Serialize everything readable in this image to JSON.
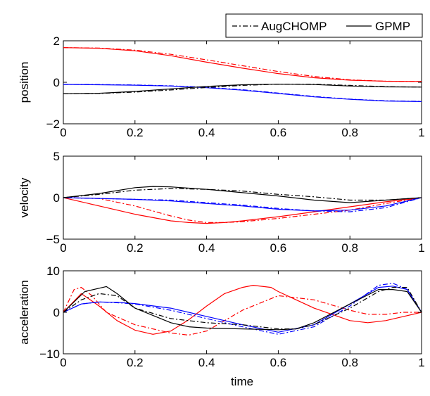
{
  "chart_data": [
    {
      "type": "line",
      "ylabel": "position",
      "xlabel": "",
      "xlim": [
        0,
        1
      ],
      "ylim": [
        -2,
        2
      ],
      "xticks": [
        0,
        0.2,
        0.4,
        0.6,
        0.8,
        1
      ],
      "xtick_labels": [
        "0",
        "0.2",
        "0.4",
        "0.6",
        "0.8",
        "1"
      ],
      "yticks": [
        -2,
        0,
        2
      ],
      "ytick_labels": [
        "−2",
        "0",
        "2"
      ],
      "legend": {
        "placement": "top-right, above plot",
        "entries": [
          "AugCHOMP",
          "GPMP"
        ]
      },
      "series": [
        {
          "method": "AugCHOMP",
          "color": "#ff0000",
          "style": "dashdot",
          "x": [
            0,
            0.1,
            0.2,
            0.3,
            0.4,
            0.5,
            0.6,
            0.7,
            0.8,
            0.9,
            1.0
          ],
          "y": [
            1.67,
            1.65,
            1.55,
            1.35,
            1.08,
            0.8,
            0.52,
            0.28,
            0.12,
            0.05,
            0.04
          ]
        },
        {
          "method": "GPMP",
          "color": "#ff0000",
          "style": "solid",
          "x": [
            0,
            0.1,
            0.2,
            0.3,
            0.4,
            0.5,
            0.6,
            0.7,
            0.8,
            0.9,
            1.0
          ],
          "y": [
            1.67,
            1.64,
            1.52,
            1.28,
            0.97,
            0.68,
            0.42,
            0.22,
            0.1,
            0.05,
            0.04
          ]
        },
        {
          "method": "AugCHOMP",
          "color": "#0000ff",
          "style": "dashdot",
          "x": [
            0,
            0.1,
            0.2,
            0.3,
            0.4,
            0.5,
            0.6,
            0.7,
            0.8,
            0.9,
            1.0
          ],
          "y": [
            -0.1,
            -0.11,
            -0.13,
            -0.17,
            -0.24,
            -0.36,
            -0.52,
            -0.68,
            -0.81,
            -0.89,
            -0.92
          ]
        },
        {
          "method": "GPMP",
          "color": "#0000ff",
          "style": "solid",
          "x": [
            0,
            0.1,
            0.2,
            0.3,
            0.4,
            0.5,
            0.6,
            0.7,
            0.8,
            0.9,
            1.0
          ],
          "y": [
            -0.1,
            -0.12,
            -0.14,
            -0.18,
            -0.26,
            -0.38,
            -0.54,
            -0.7,
            -0.82,
            -0.9,
            -0.93
          ]
        },
        {
          "method": "AugCHOMP",
          "color": "#000000",
          "style": "dashdot",
          "x": [
            0,
            0.1,
            0.2,
            0.3,
            0.4,
            0.5,
            0.6,
            0.7,
            0.8,
            0.9,
            1.0
          ],
          "y": [
            -0.55,
            -0.54,
            -0.47,
            -0.37,
            -0.25,
            -0.15,
            -0.09,
            -0.09,
            -0.15,
            -0.21,
            -0.23
          ]
        },
        {
          "method": "GPMP",
          "color": "#000000",
          "style": "solid",
          "x": [
            0,
            0.1,
            0.2,
            0.3,
            0.4,
            0.5,
            0.6,
            0.7,
            0.8,
            0.9,
            1.0
          ],
          "y": [
            -0.55,
            -0.53,
            -0.44,
            -0.32,
            -0.2,
            -0.12,
            -0.09,
            -0.11,
            -0.18,
            -0.22,
            -0.23
          ]
        }
      ]
    },
    {
      "type": "line",
      "ylabel": "velocity",
      "xlabel": "",
      "xlim": [
        0,
        1
      ],
      "ylim": [
        -5,
        5
      ],
      "xticks": [
        0,
        0.2,
        0.4,
        0.6,
        0.8,
        1
      ],
      "xtick_labels": [
        "0",
        "0.2",
        "0.4",
        "0.6",
        "0.8",
        "1"
      ],
      "yticks": [
        -5,
        0,
        5
      ],
      "ytick_labels": [
        "−5",
        "0",
        "5"
      ],
      "series": [
        {
          "method": "AugCHOMP",
          "color": "#ff0000",
          "style": "dashdot",
          "x": [
            0,
            0.1,
            0.2,
            0.3,
            0.35,
            0.4,
            0.45,
            0.5,
            0.6,
            0.7,
            0.8,
            0.9,
            1.0
          ],
          "y": [
            0,
            -0.1,
            -1.0,
            -2.2,
            -2.7,
            -3.0,
            -3.0,
            -2.9,
            -2.5,
            -2.0,
            -1.5,
            -0.7,
            0
          ]
        },
        {
          "method": "GPMP",
          "color": "#ff0000",
          "style": "solid",
          "x": [
            0,
            0.1,
            0.2,
            0.3,
            0.35,
            0.4,
            0.45,
            0.5,
            0.6,
            0.7,
            0.8,
            0.9,
            1.0
          ],
          "y": [
            0,
            -1.0,
            -2.0,
            -2.8,
            -3.0,
            -3.1,
            -3.0,
            -2.8,
            -2.3,
            -1.7,
            -1.1,
            -0.5,
            0
          ]
        },
        {
          "method": "AugCHOMP",
          "color": "#0000ff",
          "style": "dashdot",
          "x": [
            0,
            0.1,
            0.2,
            0.3,
            0.4,
            0.5,
            0.6,
            0.7,
            0.8,
            0.9,
            1.0
          ],
          "y": [
            0,
            -0.1,
            -0.2,
            -0.3,
            -0.6,
            -0.9,
            -1.3,
            -1.6,
            -1.7,
            -1.2,
            0
          ]
        },
        {
          "method": "GPMP",
          "color": "#0000ff",
          "style": "solid",
          "x": [
            0,
            0.1,
            0.2,
            0.3,
            0.4,
            0.5,
            0.6,
            0.7,
            0.8,
            0.9,
            1.0
          ],
          "y": [
            0,
            -0.1,
            -0.2,
            -0.4,
            -0.7,
            -1.0,
            -1.4,
            -1.6,
            -1.5,
            -1.0,
            0
          ]
        },
        {
          "method": "AugCHOMP",
          "color": "#000000",
          "style": "dashdot",
          "x": [
            0,
            0.1,
            0.2,
            0.3,
            0.4,
            0.5,
            0.6,
            0.7,
            0.8,
            0.9,
            1.0
          ],
          "y": [
            0,
            0.4,
            0.9,
            1.1,
            1.0,
            0.8,
            0.4,
            0.1,
            -0.3,
            -0.3,
            0
          ]
        },
        {
          "method": "GPMP",
          "color": "#000000",
          "style": "solid",
          "x": [
            0,
            0.1,
            0.2,
            0.25,
            0.3,
            0.4,
            0.5,
            0.6,
            0.7,
            0.8,
            0.9,
            1.0
          ],
          "y": [
            0,
            0.5,
            1.2,
            1.35,
            1.3,
            1.0,
            0.6,
            0.2,
            -0.3,
            -0.6,
            -0.3,
            0
          ]
        }
      ]
    },
    {
      "type": "line",
      "ylabel": "acceleration",
      "xlabel": "time",
      "xlim": [
        0,
        1
      ],
      "ylim": [
        -10,
        10
      ],
      "xticks": [
        0,
        0.2,
        0.4,
        0.6,
        0.8,
        1
      ],
      "xtick_labels": [
        "0",
        "0.2",
        "0.4",
        "0.6",
        "0.8",
        "1"
      ],
      "yticks": [
        -10,
        0,
        10
      ],
      "ytick_labels": [
        "−10",
        "0",
        "10"
      ],
      "series": [
        {
          "method": "AugCHOMP",
          "color": "#ff0000",
          "style": "dashdot",
          "x": [
            0,
            0.03,
            0.05,
            0.08,
            0.12,
            0.2,
            0.3,
            0.35,
            0.4,
            0.5,
            0.6,
            0.7,
            0.8,
            0.85,
            0.9,
            0.95,
            1.0
          ],
          "y": [
            0,
            5.5,
            6.0,
            4.0,
            0.0,
            -3.0,
            -5.0,
            -5.5,
            -4.5,
            0.5,
            4.0,
            3.0,
            0.5,
            -0.5,
            -0.5,
            0,
            0
          ]
        },
        {
          "method": "GPMP",
          "color": "#ff0000",
          "style": "solid",
          "x": [
            0,
            0.05,
            0.1,
            0.15,
            0.2,
            0.25,
            0.3,
            0.35,
            0.4,
            0.45,
            0.5,
            0.53,
            0.58,
            0.6,
            0.65,
            0.7,
            0.8,
            0.85,
            0.9,
            0.95,
            1.0
          ],
          "y": [
            0,
            4.5,
            1.5,
            -2.0,
            -4.3,
            -5.3,
            -4.5,
            -1.8,
            1.5,
            4.5,
            6.0,
            6.5,
            6.0,
            5.0,
            3.0,
            1.0,
            -2.0,
            -2.5,
            -2.0,
            -1.0,
            0
          ]
        },
        {
          "method": "AugCHOMP",
          "color": "#0000ff",
          "style": "dashdot",
          "x": [
            0,
            0.05,
            0.1,
            0.15,
            0.2,
            0.3,
            0.4,
            0.5,
            0.6,
            0.7,
            0.8,
            0.88,
            0.92,
            0.96,
            1.0
          ],
          "y": [
            0,
            2.0,
            2.5,
            2.3,
            2.0,
            0.5,
            -1.5,
            -3.5,
            -5.3,
            -3.5,
            1.5,
            6.5,
            7.0,
            5.5,
            0
          ]
        },
        {
          "method": "GPMP",
          "color": "#0000ff",
          "style": "solid",
          "x": [
            0,
            0.05,
            0.1,
            0.15,
            0.2,
            0.3,
            0.4,
            0.5,
            0.6,
            0.7,
            0.8,
            0.88,
            0.92,
            0.96,
            1.0
          ],
          "y": [
            0,
            2.0,
            2.5,
            2.4,
            2.1,
            1.0,
            -1.0,
            -3.0,
            -4.8,
            -3.0,
            2.0,
            6.0,
            6.3,
            5.5,
            0
          ]
        },
        {
          "method": "AugCHOMP",
          "color": "#000000",
          "style": "dashdot",
          "x": [
            0,
            0.05,
            0.1,
            0.15,
            0.2,
            0.3,
            0.4,
            0.5,
            0.6,
            0.65,
            0.7,
            0.8,
            0.88,
            0.92,
            0.96,
            1.0
          ],
          "y": [
            0,
            3.0,
            4.5,
            4.0,
            1.0,
            -1.5,
            -2.5,
            -3.0,
            -4.0,
            -4.0,
            -3.0,
            1.0,
            5.0,
            6.0,
            6.0,
            0
          ]
        },
        {
          "method": "GPMP",
          "color": "#000000",
          "style": "solid",
          "x": [
            0,
            0.06,
            0.12,
            0.15,
            0.2,
            0.3,
            0.35,
            0.4,
            0.5,
            0.6,
            0.65,
            0.7,
            0.8,
            0.88,
            0.92,
            0.96,
            1.0
          ],
          "y": [
            0,
            5.0,
            6.2,
            4.5,
            1.0,
            -2.5,
            -3.5,
            -3.8,
            -4.0,
            -4.2,
            -4.0,
            -2.5,
            2.0,
            5.5,
            5.5,
            5.0,
            0
          ]
        }
      ]
    }
  ]
}
